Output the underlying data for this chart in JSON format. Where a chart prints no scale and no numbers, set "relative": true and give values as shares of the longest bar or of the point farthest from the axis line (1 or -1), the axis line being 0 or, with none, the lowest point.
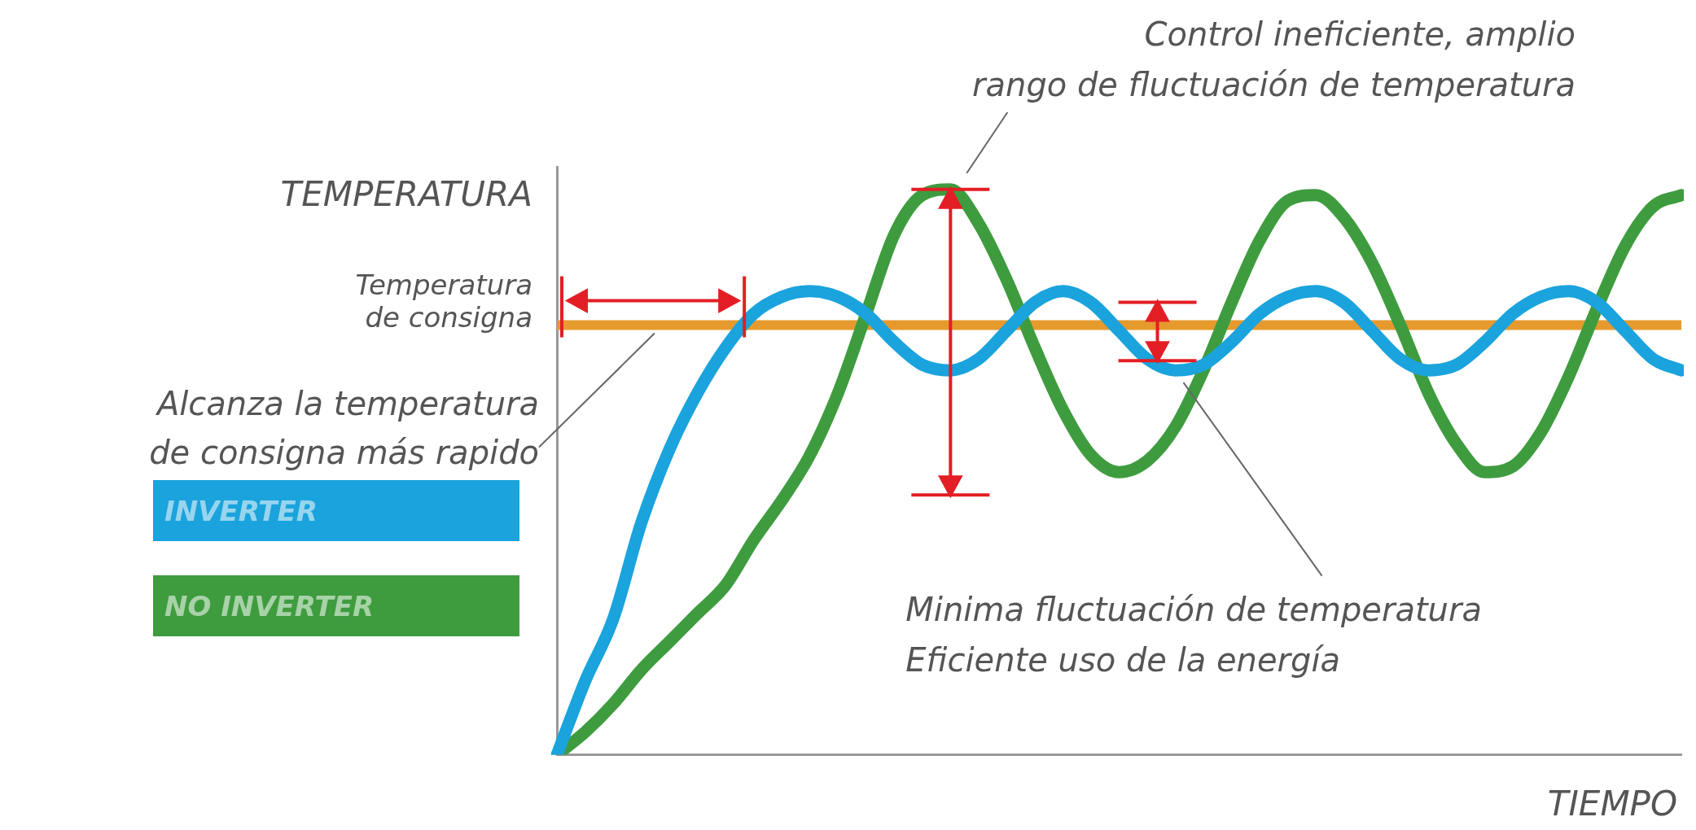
{
  "chart_data": {
    "type": "line",
    "relative": true,
    "ylabel": "TEMPERATURA",
    "xlabel": "TIEMPO",
    "legend": "left",
    "categories": [
      null,
      null,
      null,
      null,
      null,
      null,
      null,
      null,
      null,
      null,
      null,
      null,
      null,
      null,
      null,
      null,
      null,
      null,
      null,
      null,
      null,
      null,
      null,
      null,
      null,
      null,
      null,
      null,
      null,
      null,
      null,
      null,
      null,
      null,
      null,
      null,
      null,
      null,
      null,
      null,
      null
    ],
    "series": [
      {
        "name": "INVERTER",
        "color": "#1aa3dc",
        "values": [
          0,
          0.13,
          0.24,
          0.41,
          0.54,
          0.64,
          0.72,
          0.78,
          0.81,
          0.82,
          0.81,
          0.78,
          0.73,
          0.69,
          0.68,
          0.7,
          0.75,
          0.8,
          0.82,
          0.8,
          0.75,
          0.7,
          0.68,
          0.69,
          0.73,
          0.78,
          0.81,
          0.82,
          0.8,
          0.75,
          0.7,
          0.68,
          0.69,
          0.73,
          0.78,
          0.81,
          0.82,
          0.8,
          0.75,
          0.7,
          0.68
        ]
      },
      {
        "name": "NO INVERTER",
        "color": "#3e9c3f",
        "values": [
          0,
          0.04,
          0.09,
          0.15,
          0.2,
          0.25,
          0.3,
          0.38,
          0.45,
          0.53,
          0.64,
          0.78,
          0.92,
          0.99,
          1,
          0.94,
          0.84,
          0.72,
          0.61,
          0.53,
          0.5,
          0.52,
          0.58,
          0.68,
          0.8,
          0.91,
          0.98,
          0.99,
          0.95,
          0.87,
          0.76,
          0.64,
          0.55,
          0.5,
          0.51,
          0.57,
          0.67,
          0.79,
          0.9,
          0.97,
          0.99
        ]
      }
    ],
    "ref_lines": [
      {
        "axis": "y",
        "value": 0.76,
        "label": "Temperatura\nde consigna",
        "color": "#e69a2e"
      }
    ],
    "annotations": [
      "Control ineficiente, amplio\nrango de fluctuación de temperatura",
      "Alcanza la temperatura\nde consigna más rapido",
      "Minima fluctuación de temperatura\nEficiente uso de la energía"
    ]
  }
}
